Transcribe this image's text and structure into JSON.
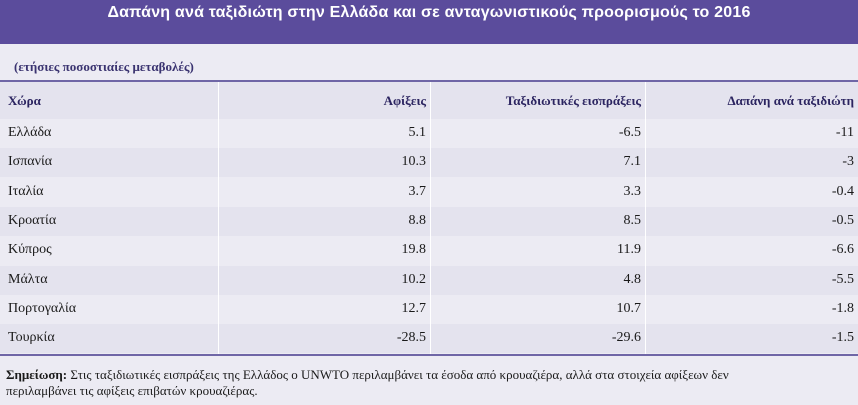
{
  "title": "Δαπάνη ανά ταξιδιώτη στην Ελλάδα και σε ανταγωνιστικούς προορισμούς το 2016",
  "units": "(ετήσιες ποσοστιαίες μεταβολές)",
  "columns": [
    "Χώρα",
    "Αφίξεις",
    "Ταξιδιωτικές εισπράξεις",
    "Δαπάνη ανά ταξιδιώτη"
  ],
  "rows": [
    {
      "country": "Ελλάδα",
      "arrivals": "5.1",
      "receipts": "-6.5",
      "spend": "-11"
    },
    {
      "country": "Ισπανία",
      "arrivals": "10.3",
      "receipts": "7.1",
      "spend": "-3"
    },
    {
      "country": "Ιταλία",
      "arrivals": "3.7",
      "receipts": "3.3",
      "spend": "-0.4"
    },
    {
      "country": "Κροατία",
      "arrivals": "8.8",
      "receipts": "8.5",
      "spend": "-0.5"
    },
    {
      "country": "Κύπρος",
      "arrivals": "19.8",
      "receipts": "11.9",
      "spend": "-6.6"
    },
    {
      "country": "Μάλτα",
      "arrivals": "10.2",
      "receipts": "4.8",
      "spend": "-5.5"
    },
    {
      "country": "Πορτογαλία",
      "arrivals": "12.7",
      "receipts": "10.7",
      "spend": "-1.8"
    },
    {
      "country": "Τουρκία",
      "arrivals": "-28.5",
      "receipts": "-29.6",
      "spend": "-1.5"
    }
  ],
  "note": {
    "label": "Σημείωση:",
    "line1": "Στις ταξιδιωτικές εισπράξεις της Ελλάδος ο UNWTO περιλαμβάνει τα έσοδα από κρουαζιέρα, αλλά στα στοιχεία αφίξεων δεν",
    "line2": "περιλαμβάνει τις αφίξεις επιβατών κρουαζιέρας."
  },
  "colors": {
    "header_bar": "#5b4c9c",
    "rule": "#6f66a6",
    "band": "#e4e3ee",
    "background": "#ecebf3"
  }
}
